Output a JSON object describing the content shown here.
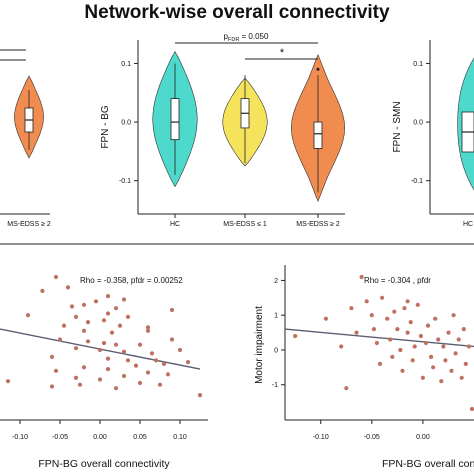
{
  "header": {
    "title": "Network-wise overall connectivity"
  },
  "colors": {
    "hc": "#4dd9cc",
    "ms_low": "#f5e35c",
    "ms_high": "#f08c50",
    "point": "#c0705e",
    "regression_line": "#5c5c72"
  },
  "chart_data": [
    {
      "type": "violin",
      "panel": "left (cropped)",
      "categories": [
        "MS-EDSS ≥ 2"
      ],
      "series": [
        {
          "name": "MS-EDSS ≥ 2",
          "median": 0.02,
          "q1": -0.01,
          "q3": 0.05,
          "min": -0.06,
          "max": 0.09
        }
      ],
      "tick_labels": [
        "MS-EDSS ≥ 2"
      ]
    },
    {
      "type": "violin",
      "panel": "center",
      "ylabel": "FPN - BG",
      "ylim": [
        -0.15,
        0.14
      ],
      "yticks": [
        "0.1",
        "0.0",
        "-0.1"
      ],
      "categories": [
        "HC",
        "MS-EDSS ≤ 1",
        "MS-EDSS ≥ 2"
      ],
      "series": [
        {
          "name": "HC",
          "median": 0.0,
          "q1": -0.03,
          "q3": 0.04,
          "min": -0.09,
          "max": 0.1,
          "ymin": -0.11,
          "ymax": 0.12
        },
        {
          "name": "MS-EDSS ≤ 1",
          "median": 0.015,
          "q1": -0.01,
          "q3": 0.04,
          "min": -0.07,
          "max": 0.08,
          "ymin": -0.075,
          "ymax": 0.075
        },
        {
          "name": "MS-EDSS ≥ 2",
          "median": -0.02,
          "q1": -0.045,
          "q3": 0.0,
          "min": -0.12,
          "max": 0.08,
          "ymin": -0.135,
          "ymax": 0.115,
          "outlier": 0.09
        }
      ],
      "annotations": [
        {
          "text": "p",
          "subscript": "FDR",
          "suffix": " = 0.050",
          "from": "HC",
          "to": "MS-EDSS ≥ 2"
        },
        {
          "text": "*",
          "from": "MS-EDSS ≤ 1",
          "to": "MS-EDSS ≥ 2"
        }
      ]
    },
    {
      "type": "violin",
      "panel": "right (cropped)",
      "ylabel": "FPN - SMN",
      "yticks": [
        "0.1",
        "0.0",
        "-0.1"
      ],
      "categories": [
        "HC"
      ],
      "tick_labels": [
        "HC"
      ]
    },
    {
      "type": "scatter",
      "panel": "bottom-left",
      "xlabel": "FPN-BG overall connectivity",
      "xlim": [
        -0.125,
        0.135
      ],
      "ylim": [
        -1.9,
        2.3
      ],
      "xticks": [
        "-0.10",
        "-0.05",
        "0.00",
        "0.05",
        "0.10"
      ],
      "annotation": "Rho = -0.358, pfdr = 0.00252",
      "regression_line": {
        "x": [
          -0.125,
          0.125
        ],
        "y": [
          0.6,
          -0.55
        ]
      },
      "points": [
        [
          -0.055,
          2.1
        ],
        [
          -0.04,
          1.8
        ],
        [
          -0.072,
          1.7
        ],
        [
          0.01,
          1.55
        ],
        [
          -0.005,
          1.4
        ],
        [
          0.03,
          1.45
        ],
        [
          -0.02,
          1.3
        ],
        [
          0.02,
          1.2
        ],
        [
          -0.035,
          1.25
        ],
        [
          0.09,
          1.15
        ],
        [
          -0.09,
          1.0
        ],
        [
          -0.03,
          0.95
        ],
        [
          0.01,
          1.05
        ],
        [
          0.035,
          0.95
        ],
        [
          0.005,
          0.85
        ],
        [
          -0.015,
          0.8
        ],
        [
          -0.045,
          0.7
        ],
        [
          0.025,
          0.7
        ],
        [
          0.06,
          0.65
        ],
        [
          -0.02,
          0.55
        ],
        [
          0.015,
          0.5
        ],
        [
          0.06,
          0.55
        ],
        [
          0.09,
          0.3
        ],
        [
          -0.05,
          0.3
        ],
        [
          -0.015,
          0.25
        ],
        [
          0.005,
          0.2
        ],
        [
          0.02,
          0.15
        ],
        [
          0.05,
          0.15
        ],
        [
          -0.03,
          0.05
        ],
        [
          0.0,
          0.0
        ],
        [
          0.03,
          -0.05
        ],
        [
          0.065,
          -0.1
        ],
        [
          0.1,
          0.0
        ],
        [
          -0.06,
          -0.2
        ],
        [
          0.01,
          -0.25
        ],
        [
          0.035,
          -0.3
        ],
        [
          0.07,
          -0.3
        ],
        [
          0.045,
          -0.45
        ],
        [
          0.08,
          -0.4
        ],
        [
          0.11,
          -0.35
        ],
        [
          -0.02,
          -0.5
        ],
        [
          0.01,
          -0.55
        ],
        [
          -0.055,
          -0.6
        ],
        [
          0.06,
          -0.65
        ],
        [
          0.085,
          -0.7
        ],
        [
          0.03,
          -0.75
        ],
        [
          -0.03,
          -0.8
        ],
        [
          0.0,
          -0.85
        ],
        [
          -0.115,
          -0.9
        ],
        [
          0.05,
          -0.95
        ],
        [
          -0.025,
          -1.0
        ],
        [
          -0.06,
          -1.05
        ],
        [
          0.02,
          -1.1
        ],
        [
          0.075,
          -1.0
        ],
        [
          0.125,
          -1.3
        ]
      ]
    },
    {
      "type": "scatter",
      "panel": "bottom-right (cropped)",
      "xlabel": "FPN-BG overall connectivit",
      "ylabel": "Motor impairment",
      "xlim": [
        -0.135,
        0.05
      ],
      "ylim": [
        -1.9,
        2.3
      ],
      "xticks": [
        "-0.10",
        "-0.05",
        "0.00"
      ],
      "yticks": [
        "2",
        "1",
        "0",
        "-1"
      ],
      "annotation": "Rho = -0.304 , pfdr",
      "regression_line": {
        "x": [
          -0.135,
          0.05
        ],
        "y": [
          0.6,
          0.1
        ]
      },
      "points": [
        [
          -0.125,
          0.4
        ],
        [
          -0.095,
          0.9
        ],
        [
          -0.08,
          0.1
        ],
        [
          -0.075,
          -1.1
        ],
        [
          -0.06,
          2.1
        ],
        [
          -0.055,
          1.4
        ],
        [
          -0.05,
          1.0
        ],
        [
          -0.048,
          0.6
        ],
        [
          -0.045,
          0.2
        ],
        [
          -0.042,
          -0.4
        ],
        [
          -0.04,
          1.5
        ],
        [
          -0.035,
          0.9
        ],
        [
          -0.032,
          0.3
        ],
        [
          -0.03,
          -0.2
        ],
        [
          -0.028,
          1.1
        ],
        [
          -0.025,
          0.6
        ],
        [
          -0.022,
          0.0
        ],
        [
          -0.02,
          -0.6
        ],
        [
          -0.018,
          1.2
        ],
        [
          -0.015,
          0.5
        ],
        [
          -0.012,
          0.8
        ],
        [
          -0.01,
          -0.3
        ],
        [
          -0.008,
          0.1
        ],
        [
          -0.005,
          1.3
        ],
        [
          -0.002,
          0.4
        ],
        [
          0.0,
          -0.8
        ],
        [
          0.003,
          0.2
        ],
        [
          0.005,
          0.7
        ],
        [
          0.008,
          -0.2
        ],
        [
          0.01,
          -0.5
        ],
        [
          0.012,
          0.9
        ],
        [
          0.015,
          0.3
        ],
        [
          0.018,
          -0.9
        ],
        [
          0.02,
          0.1
        ],
        [
          0.022,
          -0.3
        ],
        [
          0.025,
          0.5
        ],
        [
          0.028,
          -0.6
        ],
        [
          0.03,
          1.0
        ],
        [
          0.032,
          -0.1
        ],
        [
          0.035,
          0.3
        ],
        [
          0.038,
          -0.8
        ],
        [
          0.04,
          0.6
        ],
        [
          0.042,
          -0.4
        ],
        [
          0.045,
          0.1
        ],
        [
          0.048,
          -1.7
        ],
        [
          -0.065,
          0.5
        ],
        [
          -0.07,
          1.2
        ],
        [
          -0.015,
          1.4
        ]
      ]
    }
  ]
}
